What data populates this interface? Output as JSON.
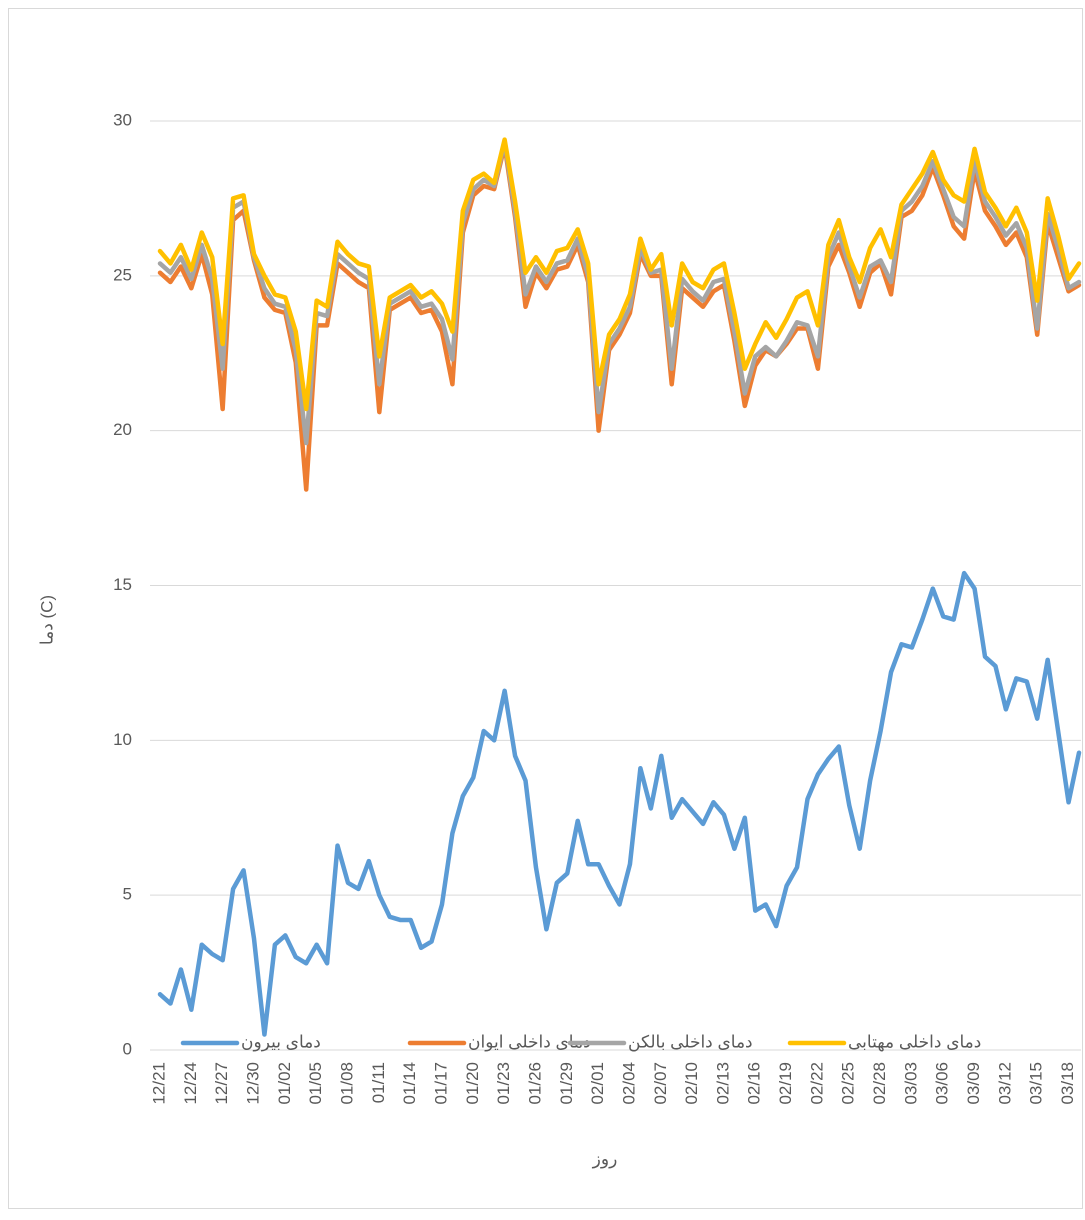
{
  "chart_data": {
    "type": "line",
    "x_label": "روز",
    "y_label": "دما (C)",
    "categories": [
      "12/21",
      null,
      null,
      "12/24",
      null,
      null,
      "12/27",
      null,
      null,
      "12/30",
      null,
      null,
      "01/02",
      null,
      null,
      "01/05",
      null,
      null,
      "01/08",
      null,
      null,
      "01/11",
      null,
      null,
      "01/14",
      null,
      null,
      "01/17",
      null,
      null,
      "01/20",
      null,
      null,
      "01/23",
      null,
      null,
      "01/26",
      null,
      null,
      "01/29",
      null,
      null,
      "02/01",
      null,
      null,
      "02/04",
      null,
      null,
      "02/07",
      null,
      null,
      "02/10",
      null,
      null,
      "02/13",
      null,
      null,
      "02/16",
      null,
      null,
      "02/19",
      null,
      null,
      "02/22",
      null,
      null,
      "02/25",
      null,
      null,
      "02/28",
      null,
      null,
      "03/03",
      null,
      null,
      "03/06",
      null,
      null,
      "03/09",
      null,
      null,
      "03/12",
      null,
      null,
      "03/15",
      null,
      null,
      "03/18",
      null
    ],
    "series": [
      {
        "name": "دمای بیرون",
        "color": "#5b9bd5",
        "values": [
          1.8,
          1.5,
          2.6,
          1.3,
          3.4,
          3.1,
          2.9,
          5.2,
          5.8,
          3.6,
          0.5,
          3.4,
          3.7,
          3.0,
          2.8,
          3.4,
          2.8,
          6.6,
          5.4,
          5.2,
          6.1,
          5.0,
          4.3,
          4.2,
          4.2,
          3.3,
          3.5,
          4.7,
          7.0,
          8.2,
          8.8,
          10.3,
          10.0,
          11.6,
          9.5,
          8.7,
          5.9,
          3.9,
          5.4,
          5.7,
          7.4,
          6.0,
          6.0,
          5.3,
          4.7,
          6.0,
          9.1,
          7.8,
          9.5,
          7.5,
          8.1,
          7.7,
          7.3,
          8.0,
          7.6,
          6.5,
          7.5,
          4.5,
          4.7,
          4.0,
          5.3,
          5.9,
          8.1,
          8.9,
          9.4,
          9.8,
          7.9,
          6.5,
          8.7,
          10.3,
          12.2,
          13.1,
          13.0,
          13.9,
          14.9,
          14.0,
          13.9,
          15.4,
          14.9,
          12.7,
          12.4,
          11.0,
          12.0,
          11.9,
          10.7,
          12.6,
          10.3,
          8.0,
          9.6
        ]
      },
      {
        "name": "دمای داخلی ایوان",
        "color": "#ed7d31",
        "values": [
          25.1,
          24.8,
          25.3,
          24.6,
          25.7,
          24.4,
          20.7,
          26.8,
          27.1,
          25.5,
          24.3,
          23.9,
          23.8,
          22.2,
          18.1,
          23.4,
          23.4,
          25.4,
          25.1,
          24.8,
          24.6,
          20.6,
          23.9,
          24.1,
          24.3,
          23.8,
          23.9,
          23.2,
          21.5,
          26.4,
          27.6,
          27.9,
          27.8,
          29.2,
          26.9,
          24.0,
          25.1,
          24.6,
          25.2,
          25.3,
          26.0,
          24.8,
          20.0,
          22.6,
          23.1,
          23.8,
          25.7,
          25.0,
          25.0,
          21.5,
          24.6,
          24.3,
          24.0,
          24.5,
          24.7,
          22.9,
          20.8,
          22.1,
          22.6,
          22.4,
          22.8,
          23.3,
          23.3,
          22.0,
          25.3,
          26.0,
          25.1,
          24.0,
          25.1,
          25.4,
          24.4,
          26.9,
          27.1,
          27.6,
          28.5,
          27.6,
          26.6,
          26.2,
          28.4,
          27.1,
          26.6,
          26.0,
          26.4,
          25.6,
          23.1,
          26.7,
          25.6,
          24.5,
          24.7
        ]
      },
      {
        "name": "دمای داخلی بالکن",
        "color": "#a5a5a5",
        "values": [
          25.4,
          25.1,
          25.6,
          24.9,
          26.0,
          24.9,
          22.0,
          27.2,
          27.4,
          25.6,
          24.6,
          24.1,
          24.0,
          22.6,
          19.6,
          23.8,
          23.7,
          25.7,
          25.4,
          25.1,
          24.9,
          21.5,
          24.1,
          24.3,
          24.5,
          24.0,
          24.1,
          23.6,
          22.3,
          26.7,
          27.8,
          28.1,
          27.9,
          29.3,
          27.1,
          24.4,
          25.3,
          24.8,
          25.4,
          25.5,
          26.2,
          25.0,
          20.6,
          22.8,
          23.3,
          24.0,
          25.9,
          25.1,
          25.2,
          22.0,
          24.9,
          24.5,
          24.2,
          24.8,
          24.9,
          23.2,
          21.2,
          22.4,
          22.7,
          22.4,
          22.9,
          23.5,
          23.4,
          22.4,
          25.6,
          26.4,
          25.3,
          24.3,
          25.3,
          25.5,
          24.8,
          27.1,
          27.4,
          27.9,
          28.7,
          27.8,
          26.9,
          26.6,
          28.7,
          27.4,
          26.9,
          26.3,
          26.7,
          25.9,
          23.3,
          27.0,
          25.9,
          24.6,
          24.8
        ]
      },
      {
        "name": "دمای داخلی مهتابی",
        "color": "#ffc000",
        "values": [
          25.8,
          25.4,
          26.0,
          25.2,
          26.4,
          25.6,
          22.8,
          27.5,
          27.6,
          25.7,
          25.0,
          24.4,
          24.3,
          23.2,
          20.7,
          24.2,
          24.0,
          26.1,
          25.7,
          25.4,
          25.3,
          22.4,
          24.3,
          24.5,
          24.7,
          24.3,
          24.5,
          24.1,
          23.2,
          27.1,
          28.1,
          28.3,
          28.0,
          29.4,
          27.4,
          25.1,
          25.6,
          25.1,
          25.8,
          25.9,
          26.5,
          25.4,
          21.5,
          23.1,
          23.6,
          24.4,
          26.2,
          25.2,
          25.7,
          23.4,
          25.4,
          24.8,
          24.6,
          25.2,
          25.4,
          23.8,
          22.0,
          22.8,
          23.5,
          23.0,
          23.6,
          24.3,
          24.5,
          23.4,
          26.0,
          26.8,
          25.6,
          24.8,
          25.9,
          26.5,
          25.6,
          27.3,
          27.8,
          28.3,
          29.0,
          28.1,
          27.6,
          27.4,
          29.1,
          27.7,
          27.2,
          26.6,
          27.2,
          26.4,
          24.2,
          27.5,
          26.3,
          24.9,
          25.4
        ]
      }
    ],
    "ylim": [
      0,
      30
    ],
    "yticks": [
      0,
      5,
      10,
      15,
      20,
      25,
      30
    ],
    "grid": true,
    "legend": "bottom"
  }
}
